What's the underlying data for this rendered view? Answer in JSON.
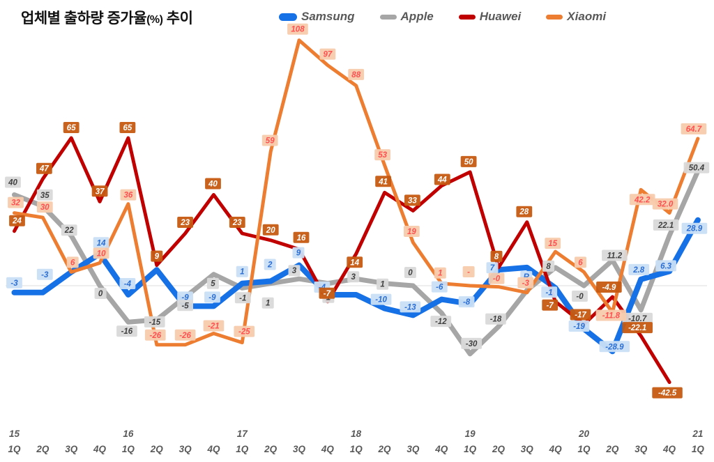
{
  "title": {
    "main": "업체별 출하량 증가율",
    "unit": "(%)",
    "suffix": " 추이"
  },
  "chart_data": {
    "type": "line",
    "title": "업체별 출하량 증가율(%) 추이",
    "x_axis": {
      "quarters": [
        "1Q",
        "2Q",
        "3Q",
        "4Q",
        "1Q",
        "2Q",
        "3Q",
        "4Q",
        "1Q",
        "2Q",
        "3Q",
        "4Q",
        "1Q",
        "2Q",
        "3Q",
        "4Q",
        "1Q",
        "2Q",
        "3Q",
        "4Q",
        "1Q",
        "2Q",
        "3Q",
        "4Q",
        "1Q"
      ],
      "year_marks": {
        "0": "15",
        "4": "16",
        "8": "17",
        "12": "18",
        "16": "19",
        "20": "20",
        "24": "21"
      }
    },
    "ylim": [
      -50,
      115
    ],
    "zero_gridline": true,
    "legend_position": "top",
    "axis_text_color": "#595959",
    "series": [
      {
        "name": "Samsung",
        "color": "#1670e6",
        "line_width": 8,
        "label_bg": "#c9def5",
        "label_color": "#2b6fd4",
        "values": [
          -3,
          -3,
          6,
          14,
          -4,
          7,
          -9,
          -9,
          1,
          2,
          9,
          -4,
          -4,
          -10,
          -13,
          -6,
          -8,
          7,
          8,
          -1,
          -19,
          -28.9,
          2.8,
          6.3,
          28.9
        ],
        "labels": [
          "-3",
          "-3",
          null,
          "14",
          "-4",
          null,
          "-9",
          "-9",
          "1",
          "2",
          "9",
          "-4",
          null,
          "-10",
          "-13",
          "-6",
          "-8",
          "7",
          "R",
          "-1",
          "-19",
          "-28.9",
          "2.8",
          "6.3",
          "28.9"
        ],
        "label_offsets": [
          [
            0,
            -14
          ],
          [
            3,
            -26
          ],
          null,
          [
            2,
            -16
          ],
          [
            -1,
            -16
          ],
          null,
          [
            0,
            -13
          ],
          [
            -2,
            -13
          ],
          [
            0,
            -17
          ],
          [
            -1,
            -24
          ],
          [
            -1,
            -18
          ],
          [
            -8,
            -11
          ],
          null,
          [
            -5,
            -13
          ],
          [
            -4,
            -12
          ],
          [
            -3,
            -18
          ],
          [
            -5,
            -3
          ],
          [
            -9,
            -3
          ],
          [
            -1,
            13
          ],
          [
            -9,
            6
          ],
          [
            -7,
            -4
          ],
          [
            3,
            -7
          ],
          [
            -3,
            -14
          ],
          [
            -5,
            -8
          ],
          [
            -5,
            12
          ]
        ]
      },
      {
        "name": "Apple",
        "color": "#a6a6a6",
        "line_width": 7,
        "label_bg": "#d9d9d9",
        "label_color": "#404040",
        "values": [
          40,
          35,
          22,
          0,
          -16,
          -15,
          -5,
          5,
          -1,
          1,
          3,
          1,
          3,
          1,
          0,
          -12,
          -30,
          -18,
          -2,
          8,
          0,
          11.2,
          -10.7,
          22.1,
          50.4
        ],
        "labels": [
          "40",
          "35",
          "22",
          "0",
          "-16",
          "-15",
          "-5",
          "5",
          "-1",
          "1",
          "3",
          "1",
          "3",
          "1",
          "0",
          "-12",
          "-30",
          "-18",
          null,
          "8",
          "-0",
          "11.2",
          "-10.7",
          "22.1",
          "50.4"
        ],
        "label_offsets": [
          [
            -2,
            -18
          ],
          [
            3,
            -16
          ],
          [
            -3,
            -8
          ],
          [
            1,
            11
          ],
          [
            -2,
            13
          ],
          [
            -3,
            3
          ],
          [
            0,
            12
          ],
          [
            -1,
            13
          ],
          [
            1,
            14
          ],
          [
            -4,
            28
          ],
          [
            -7,
            -12
          ],
          [
            1,
            20
          ],
          [
            -4,
            -3
          ],
          [
            -3,
            1
          ],
          [
            -4,
            -19
          ],
          [
            -1,
            12
          ],
          [
            2,
            -15
          ],
          [
            -4,
            -11
          ],
          null,
          [
            -10,
            -2
          ],
          [
            -6,
            15
          ],
          [
            3,
            -7
          ],
          [
            -5,
            12
          ],
          [
            -5,
            -15
          ],
          [
            -2,
            -5
          ]
        ]
      },
      {
        "name": "Huawei",
        "color": "#c00000",
        "line_width": 5,
        "label_bg": "#c55a11",
        "label_color": "#ffffff",
        "values": [
          24,
          47,
          65,
          37,
          65,
          9,
          23,
          40,
          23,
          20,
          16,
          -7,
          14,
          41,
          33,
          44,
          50,
          8,
          28,
          -7,
          -17,
          -4.9,
          -22.1,
          -42.5,
          null
        ],
        "labels": [
          "24",
          "47",
          "65",
          "37",
          "65",
          "9",
          "23",
          "40",
          "23",
          "20",
          "16",
          "-7",
          "14",
          "41",
          "33",
          "44",
          "50",
          "8",
          "28",
          "-7",
          "-17",
          "-4.9",
          "-22.1",
          "-42.5",
          null
        ],
        "label_offsets": [
          [
            4,
            -15
          ],
          [
            2,
            -15
          ],
          [
            0,
            -15
          ],
          [
            0,
            -15
          ],
          [
            -1,
            -15
          ],
          [
            0,
            -13
          ],
          [
            0,
            -16
          ],
          [
            -1,
            -16
          ],
          [
            -7,
            -16
          ],
          [
            0,
            -15
          ],
          [
            3,
            -17
          ],
          [
            -1,
            -12
          ],
          [
            -2,
            12
          ],
          [
            -2,
            -16
          ],
          [
            -1,
            -15
          ],
          [
            1,
            -9
          ],
          [
            -2,
            -15
          ],
          [
            -3,
            -16
          ],
          [
            -4,
            -15
          ],
          [
            -8,
            5
          ],
          [
            -5,
            -14
          ],
          [
            -5,
            -14
          ],
          [
            -5,
            -12
          ],
          [
            -3,
            15
          ],
          null
        ]
      },
      {
        "name": "Xiaomi",
        "color": "#ed7d31",
        "line_width": 5,
        "label_bg": "#f8cbad",
        "label_color": "#ff5050",
        "values": [
          32,
          30,
          6,
          10,
          36,
          -26,
          -26,
          -21,
          -25,
          59,
          108,
          97,
          88,
          53,
          19,
          1,
          0,
          -0.5,
          -3,
          15,
          6,
          -11.8,
          42.2,
          32.0,
          64.7
        ],
        "labels": [
          "32",
          "30",
          "6",
          "10",
          "36",
          "-26",
          "-26",
          "-21",
          "-25",
          "59",
          "108",
          "97",
          "88",
          "53",
          "19",
          "1",
          "-",
          "-0",
          "-3",
          "15",
          "6",
          "-11.8",
          "42.2",
          "32.0",
          "64.7"
        ],
        "label_offsets": [
          [
            2,
            -15
          ],
          [
            3,
            -15
          ],
          [
            2,
            -14
          ],
          [
            2,
            -14
          ],
          [
            0,
            -13
          ],
          [
            -2,
            -14
          ],
          [
            0,
            -14
          ],
          [
            0,
            -11
          ],
          [
            3,
            -16
          ],
          [
            -1,
            -16
          ],
          [
            -2,
            -16
          ],
          [
            0,
            -16
          ],
          [
            0,
            -16
          ],
          [
            -3,
            -15
          ],
          [
            -2,
            -16
          ],
          [
            -2,
            -15
          ],
          [
            -2,
            -20
          ],
          [
            -3,
            -12
          ],
          [
            -2,
            -14
          ],
          [
            -4,
            -12
          ],
          [
            -5,
            -14
          ],
          [
            -2,
            4
          ],
          [
            2,
            14
          ],
          [
            -6,
            -13
          ],
          [
            -6,
            -14
          ]
        ]
      }
    ]
  }
}
